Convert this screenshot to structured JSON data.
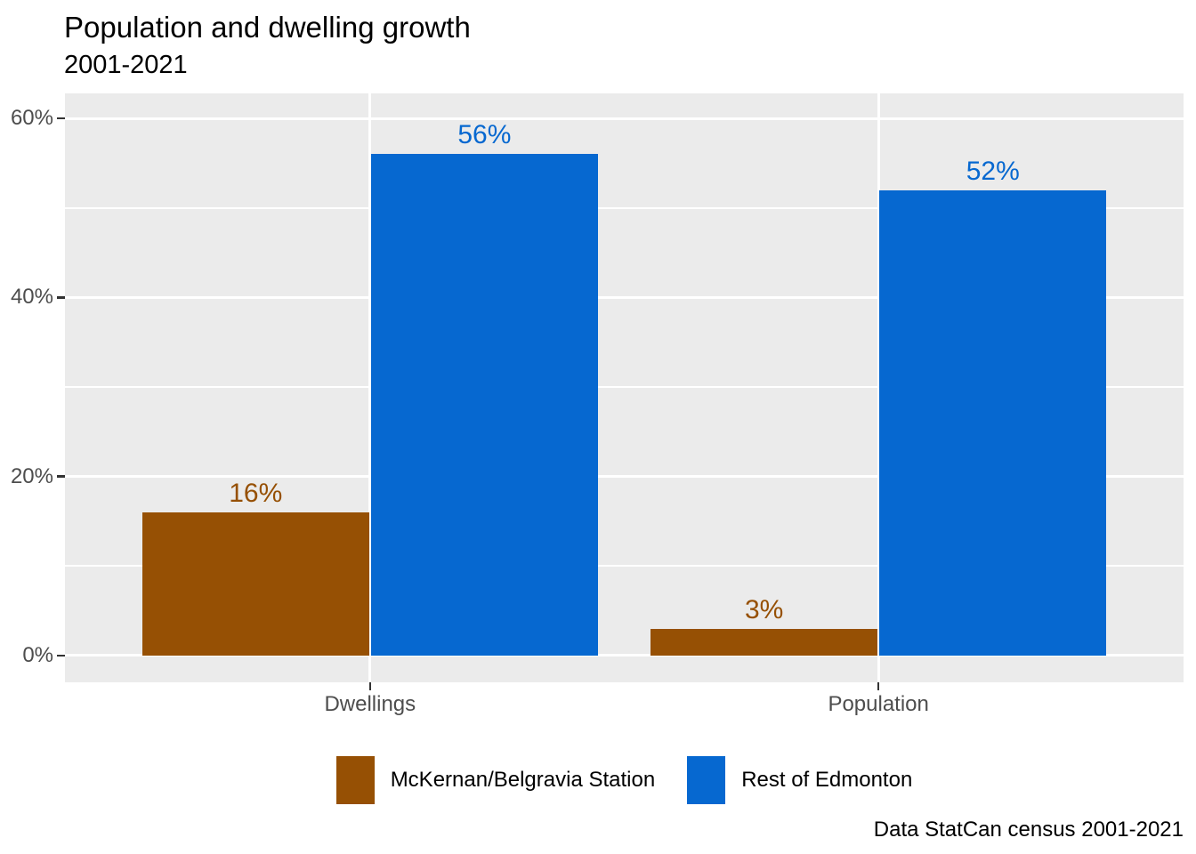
{
  "title": "Population and dwelling growth",
  "subtitle": "2001-2021",
  "caption": "Data StatCan census 2001-2021",
  "chart_data": {
    "type": "bar",
    "grouped": true,
    "title": "Population and dwelling growth",
    "subtitle": "2001-2021",
    "caption": "Data StatCan census 2001-2021",
    "categories": [
      "Dwellings",
      "Population"
    ],
    "series": [
      {
        "name": "McKernan/Belgravia Station",
        "color": "#965004",
        "values": [
          16,
          3
        ],
        "labels": [
          "16%",
          "3%"
        ]
      },
      {
        "name": "Rest of Edmonton",
        "color": "#0668D0",
        "values": [
          56,
          52
        ],
        "labels": [
          "56%",
          "52%"
        ]
      }
    ],
    "xlabel": "",
    "ylabel": "",
    "y_axis": {
      "ticks": [
        0,
        20,
        40,
        60
      ],
      "tick_labels": [
        "0%",
        "20%",
        "40%",
        "60%"
      ],
      "minor_ticks": [
        10,
        30,
        50
      ],
      "ylim": [
        -3,
        62.8
      ],
      "format": "percent"
    },
    "legend_position": "bottom",
    "grid": "horizontal major+minor white, vertical major at category centers",
    "colors": {
      "panel_bg": "#EBEBEB",
      "grid": "#FFFFFF",
      "axis_text": "#4D4D4D",
      "tick_mark": "#333333",
      "title_text": "#000000"
    }
  }
}
